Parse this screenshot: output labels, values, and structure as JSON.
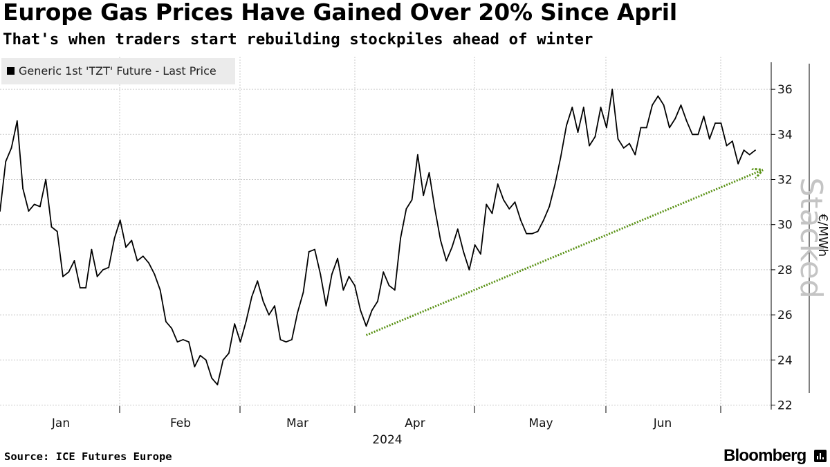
{
  "header": {
    "title": "Europe Gas Prices Have Gained Over 20% Since April",
    "subtitle": "That's when traders start rebuilding stockpiles ahead of winter"
  },
  "footer": {
    "source": "Source: ICE Futures Europe",
    "brand": "Bloomberg"
  },
  "chart_data": {
    "type": "line",
    "title": "Europe Gas Prices Have Gained Over 20% Since April",
    "subtitle": "That's when traders start rebuilding stockpiles ahead of winter",
    "xlabel": "2024",
    "ylabel": "€/MWh",
    "ylim": [
      21.8,
      37.2
    ],
    "y_ticks": [
      22,
      24,
      26,
      28,
      30,
      32,
      34,
      36
    ],
    "month_labels": [
      "Jan",
      "Feb",
      "Mar",
      "Apr",
      "May",
      "Jun"
    ],
    "year_label": "2024",
    "watermark": "Stacked",
    "grid": true,
    "legend_position": "top-left",
    "series": [
      {
        "name": "Generic 1st 'TZT' Future - Last Price",
        "color": "#000000",
        "values": [
          30.6,
          32.8,
          33.4,
          34.6,
          31.6,
          30.6,
          30.9,
          30.8,
          32.0,
          29.9,
          29.7,
          27.7,
          27.9,
          28.4,
          27.2,
          27.2,
          28.9,
          27.7,
          28.0,
          28.1,
          29.4,
          30.2,
          29.0,
          29.3,
          28.4,
          28.6,
          28.3,
          27.8,
          27.1,
          25.7,
          25.4,
          24.8,
          24.9,
          24.8,
          23.7,
          24.2,
          24.0,
          23.2,
          22.9,
          24.0,
          24.3,
          25.6,
          24.8,
          25.7,
          26.8,
          27.5,
          26.6,
          26.0,
          26.4,
          24.9,
          24.8,
          24.9,
          26.1,
          27.0,
          28.8,
          28.9,
          27.8,
          26.4,
          27.8,
          28.5,
          27.1,
          27.7,
          27.3,
          26.2,
          25.5,
          26.2,
          26.6,
          27.9,
          27.3,
          27.1,
          29.4,
          30.7,
          31.1,
          33.1,
          31.3,
          32.3,
          30.7,
          29.3,
          28.4,
          29.0,
          29.8,
          28.8,
          28.0,
          29.1,
          28.7,
          30.9,
          30.5,
          31.8,
          31.1,
          30.7,
          31.0,
          30.2,
          29.6,
          29.6,
          29.7,
          30.2,
          30.8,
          31.8,
          33.0,
          34.4,
          35.2,
          34.1,
          35.2,
          33.5,
          33.9,
          35.2,
          34.3,
          36.0,
          33.8,
          33.4,
          33.6,
          33.1,
          34.3,
          34.3,
          35.3,
          35.7,
          35.3,
          34.3,
          34.7,
          35.3,
          34.6,
          34.0,
          34.0,
          34.8,
          33.8,
          34.5,
          34.5,
          33.5,
          33.7,
          32.7,
          33.3,
          33.1,
          33.3
        ]
      }
    ],
    "annotation": {
      "type": "trend-arrow",
      "style": "dotted",
      "color": "#5a9216",
      "from": [
        64,
        25.1
      ],
      "to": [
        133,
        32.4
      ]
    }
  }
}
